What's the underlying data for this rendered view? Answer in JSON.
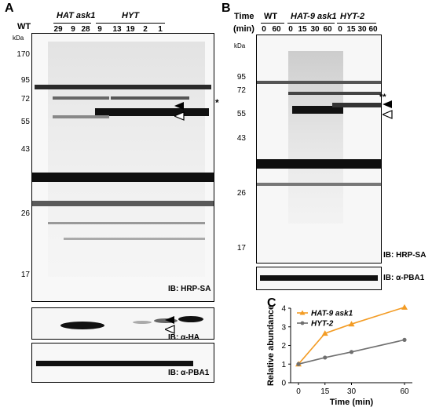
{
  "panelA": {
    "letter": "A",
    "wt_label": "WT",
    "group1_label": "HAT ask1",
    "group2_label": "HYT",
    "kda_label": "kDa",
    "lanes": [
      "29",
      "9",
      "28",
      "9",
      "13",
      "19",
      "2",
      "1"
    ],
    "markers": [
      "170",
      "95",
      "72",
      "55",
      "43",
      "26",
      "17"
    ],
    "asterisk": "*",
    "ib_main": "IB: HRP-SA",
    "ib_ha": "IB: α-HA",
    "ib_pba1": "IB: α-PBA1"
  },
  "panelB": {
    "letter": "B",
    "time_label": "Time",
    "min_label": "(min)",
    "wt_label": "WT",
    "group1_label": "HAT-9 ask1",
    "group2_label": "HYT-2",
    "kda_label": "kDa",
    "lanes": [
      "0",
      "60",
      "0",
      "15",
      "30",
      "60",
      "0",
      "15",
      "30",
      "60"
    ],
    "markers": [
      "95",
      "72",
      "55",
      "43",
      "26",
      "17"
    ],
    "asterisk": "**",
    "ib_main": "IB: HRP-SA",
    "ib_pba1": "IB: α-PBA1"
  },
  "panelC": {
    "letter": "C"
  },
  "chart_data": {
    "type": "line",
    "x": [
      0,
      15,
      30,
      60
    ],
    "xticks": [
      "0",
      "15",
      "30",
      "60"
    ],
    "xlabel": "Time (min)",
    "ylabel": "Relative abundance",
    "ylim": [
      0,
      4
    ],
    "yticks": [
      0,
      1,
      2,
      3,
      4
    ],
    "legend_position": "top-left",
    "series": [
      {
        "name": "HAT-9 ask1",
        "values": [
          1.0,
          2.65,
          3.15,
          4.05
        ],
        "color": "#f39c25",
        "marker": "triangle"
      },
      {
        "name": "HYT-2",
        "values": [
          1.0,
          1.35,
          1.65,
          2.3
        ],
        "color": "#707070",
        "marker": "circle"
      }
    ]
  }
}
